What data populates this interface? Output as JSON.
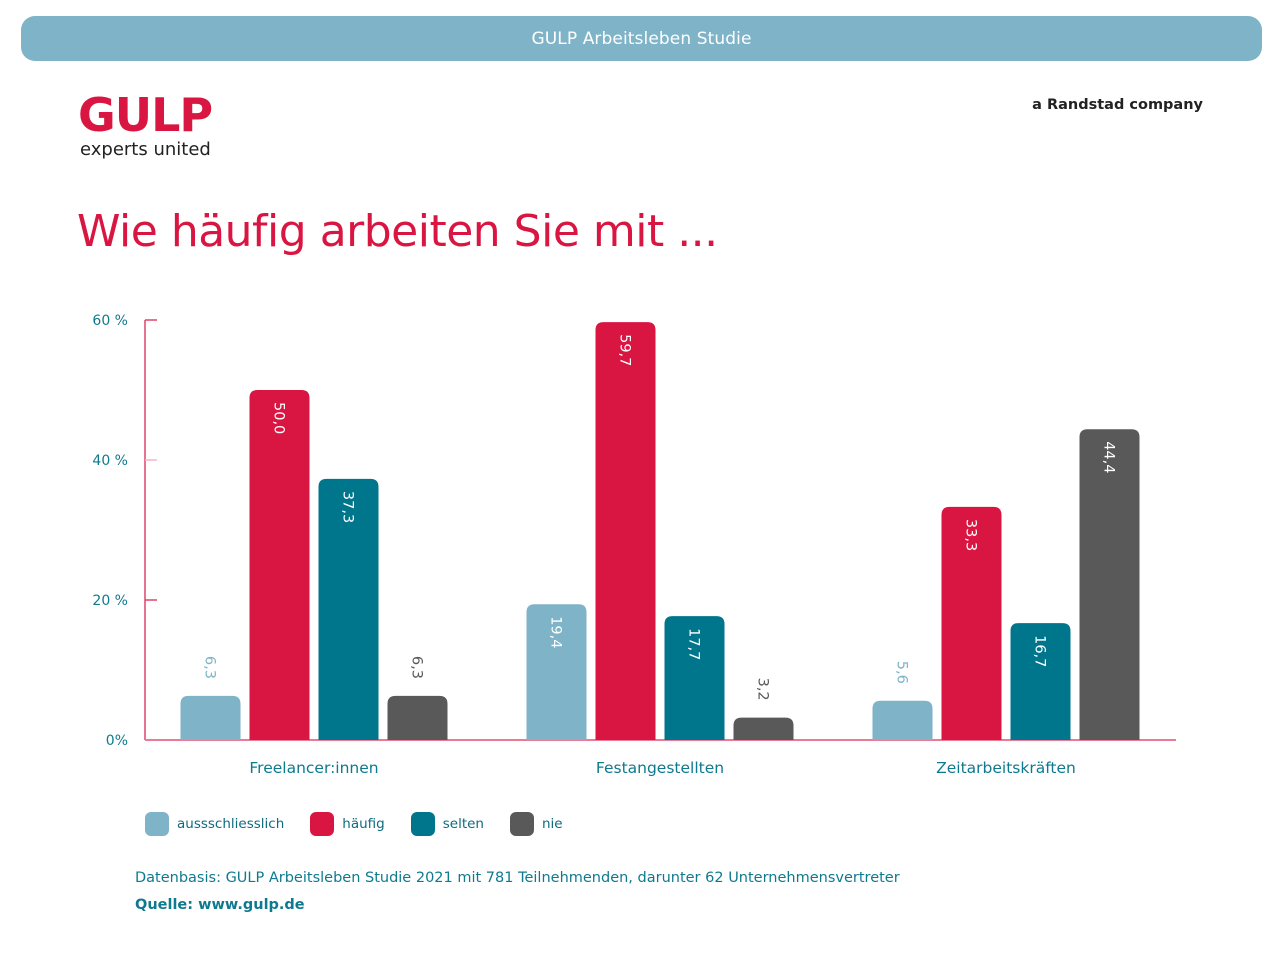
{
  "header": {
    "banner": "GULP Arbeitsleben Studie",
    "logo_word": "GULP",
    "logo_tagline": "experts united",
    "company": "a Randstad company"
  },
  "footer": {
    "datenbasis": "Datenbasis: GULP Arbeitsleben Studie 2021 mit 781 Teilnehmenden, darunter 62 Unternehmensvertreter",
    "quelle": "Quelle: www.gulp.de"
  },
  "colors": {
    "brand_red": "#d91541",
    "axis": "#e0446a",
    "tick_text": "#0e7a8f",
    "category_text": "#0e7a8f"
  },
  "chart_data": {
    "type": "bar",
    "title": "Wie häufig arbeiten Sie mit ...",
    "xlabel": "",
    "ylabel": "",
    "ylim": [
      0,
      60
    ],
    "yticks": [
      {
        "value": 0,
        "label": "0%"
      },
      {
        "value": 20,
        "label": "20 %"
      },
      {
        "value": 40,
        "label": "40 %"
      },
      {
        "value": 60,
        "label": "60 %"
      }
    ],
    "grid": false,
    "legend_position": "bottom-left",
    "categories": [
      "Freelancer:innen",
      "Festangestellten",
      "Zeitarbeitskräften"
    ],
    "series": [
      {
        "name": "aussschliesslich",
        "color": "#7fb3c8",
        "values": [
          6.3,
          19.4,
          5.6
        ],
        "labels": [
          "6,3",
          "19,4",
          "5,6"
        ]
      },
      {
        "name": "häufig",
        "color": "#d91541",
        "values": [
          50.0,
          59.7,
          33.3
        ],
        "labels": [
          "50,0",
          "59,7",
          "33,3"
        ]
      },
      {
        "name": "selten",
        "color": "#00768c",
        "values": [
          37.3,
          17.7,
          16.7
        ],
        "labels": [
          "37,3",
          "17,7",
          "16,7"
        ]
      },
      {
        "name": "nie",
        "color": "#595959",
        "values": [
          6.3,
          3.2,
          44.4
        ],
        "labels": [
          "6,3",
          "3,2",
          "44,4"
        ]
      }
    ]
  }
}
